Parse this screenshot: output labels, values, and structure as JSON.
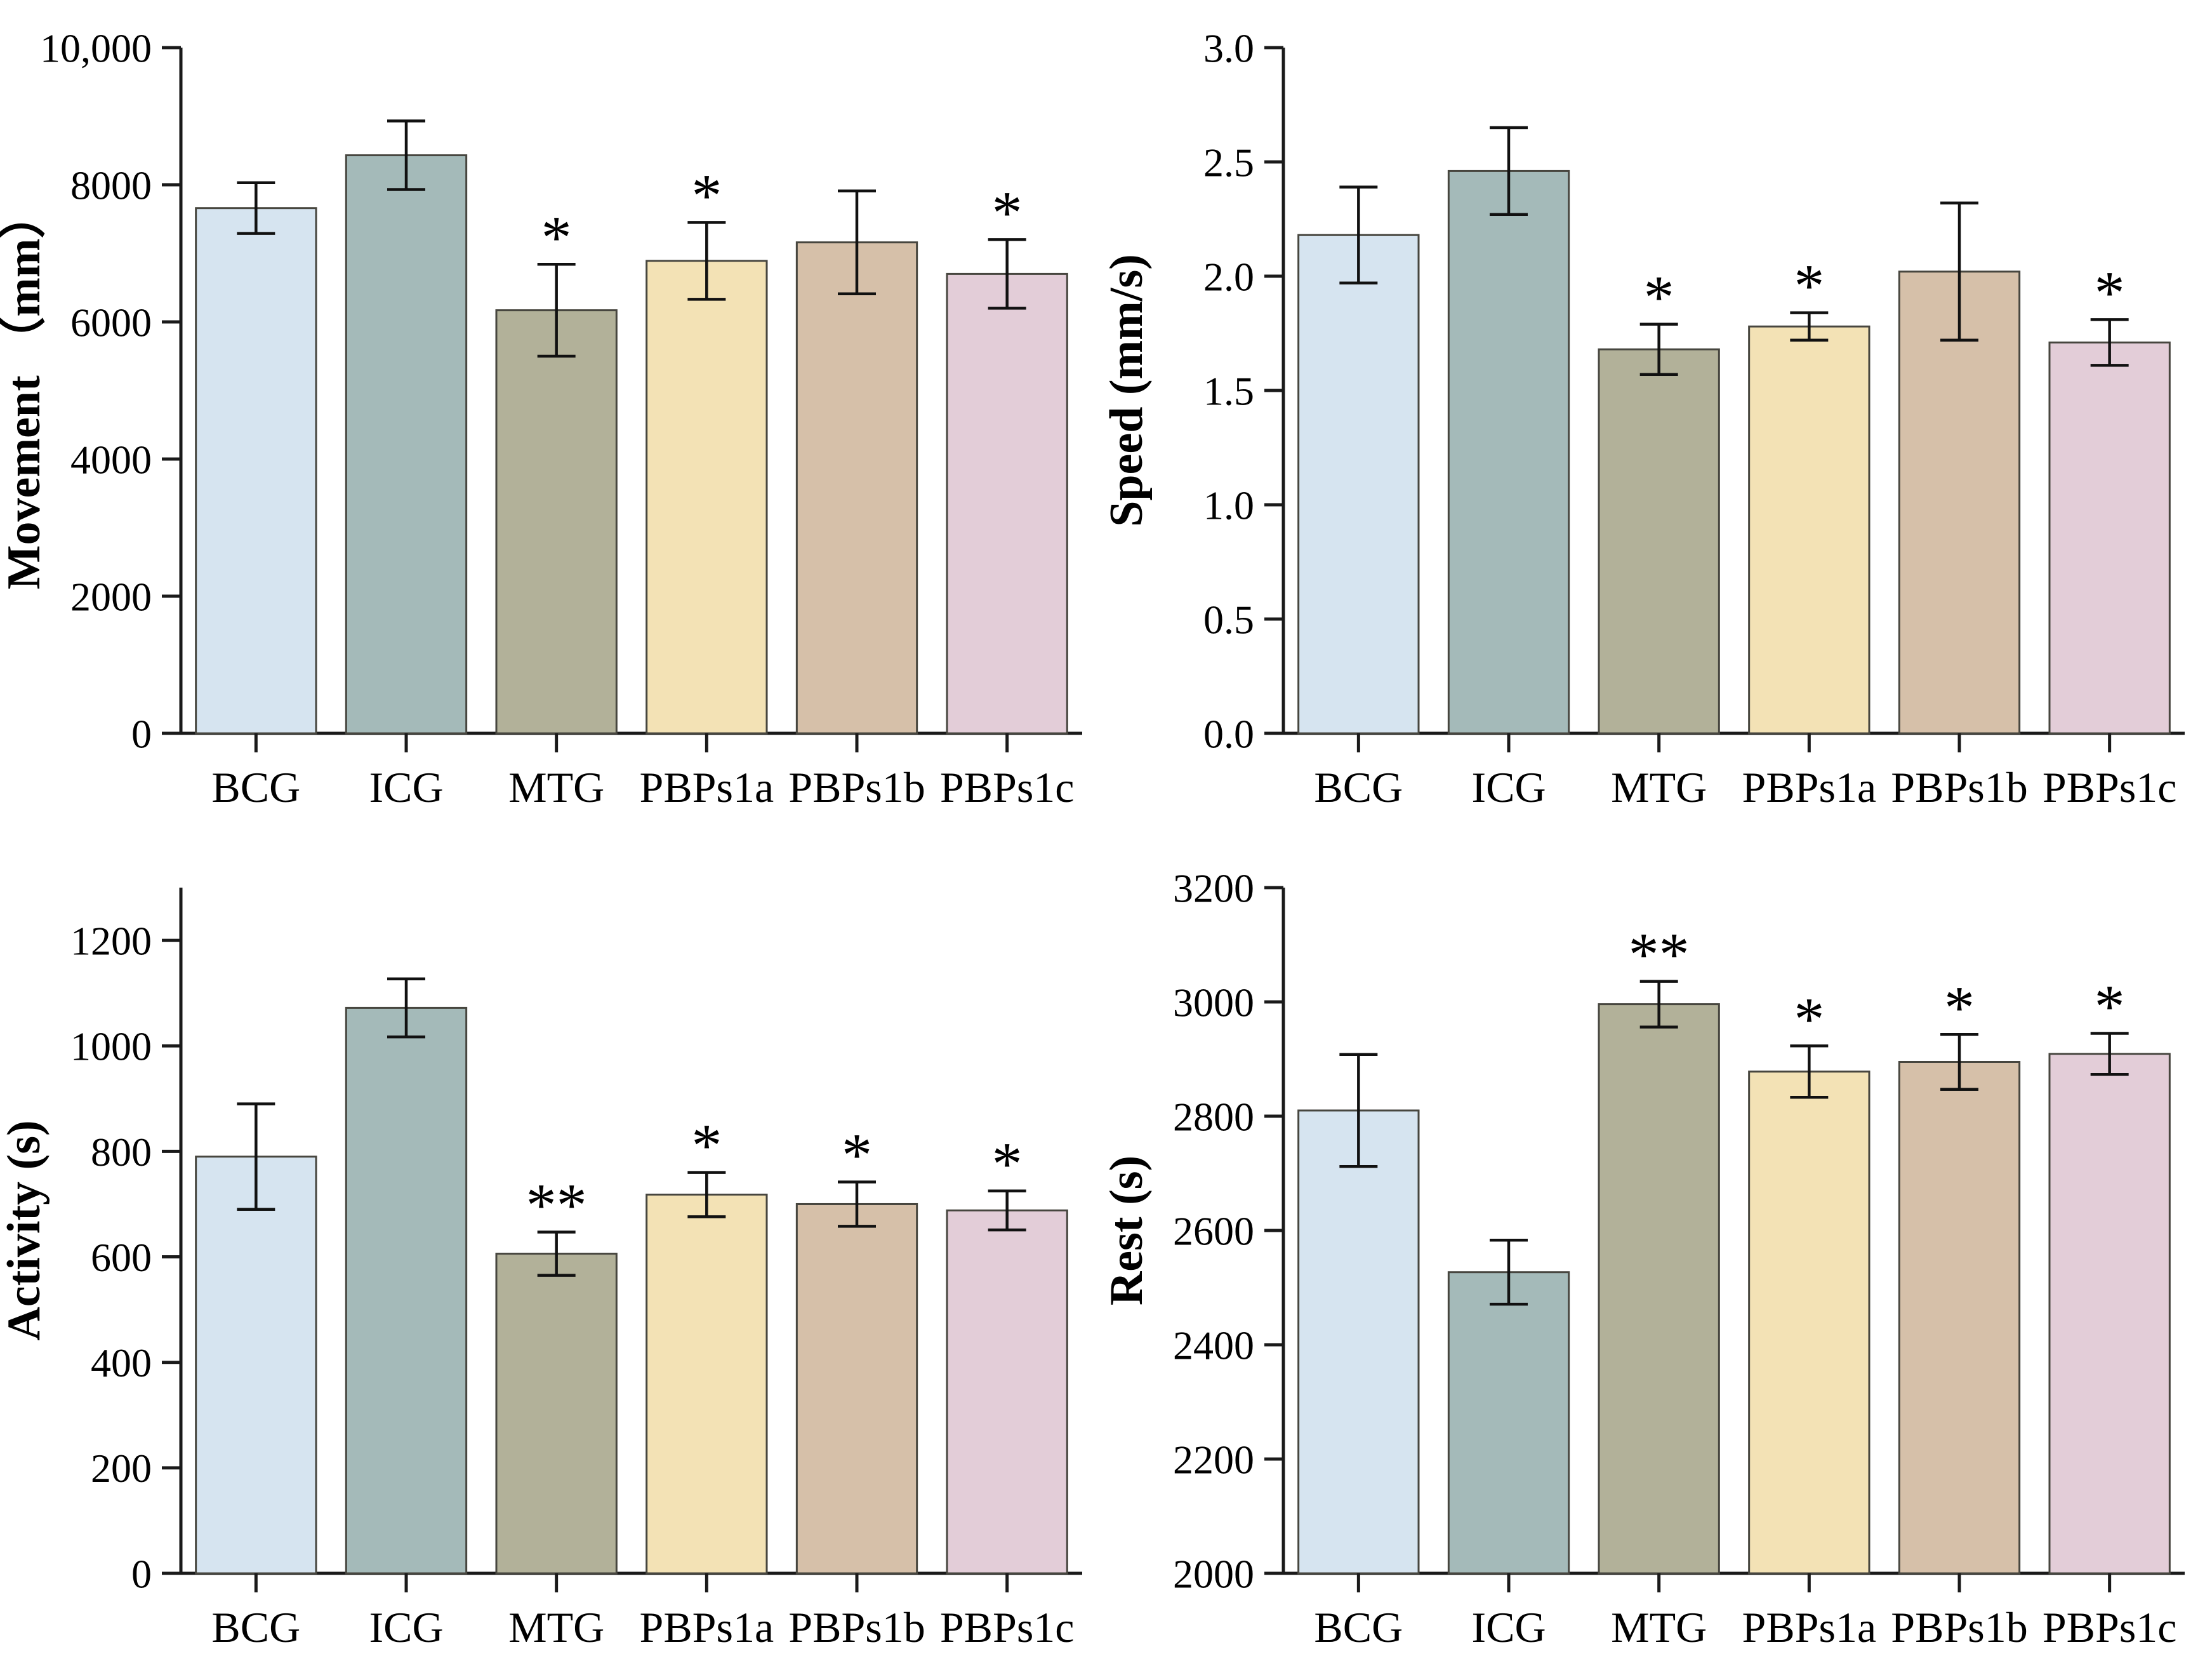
{
  "figure": {
    "background": "#ffffff",
    "axis_color": "#1a1a1a",
    "bar_edge_color": "#47463f",
    "error_bar_color": "#111111",
    "text_color": "#000000",
    "categories": [
      "BCG",
      "ICG",
      "MTG",
      "PBPs1a",
      "PBPs1b",
      "PBPs1c"
    ],
    "bar_colors": [
      "#d6e4f0",
      "#a4bab9",
      "#b2b199",
      "#f3e2b5",
      "#d6c0a9",
      "#e3cdd8"
    ]
  },
  "chart_data": [
    {
      "id": "movement",
      "type": "bar",
      "ylabel": "Movement （mm）",
      "categories": [
        "BCG",
        "ICG",
        "MTG",
        "PBPs1a",
        "PBPs1b",
        "PBPs1c"
      ],
      "values": [
        7660,
        8430,
        6170,
        6890,
        7160,
        6700
      ],
      "errors": [
        370,
        500,
        670,
        560,
        750,
        500
      ],
      "significance": [
        "",
        "",
        "*",
        "*",
        "",
        "*"
      ],
      "ylim": [
        0,
        10000
      ],
      "yticks": [
        0,
        2000,
        4000,
        6000,
        8000,
        10000
      ],
      "ytick_labels": [
        "0",
        "2000",
        "4000",
        "6000",
        "8000",
        "10,000"
      ],
      "grid": false,
      "legend": false
    },
    {
      "id": "speed",
      "type": "bar",
      "ylabel": "Speed (mm/s)",
      "categories": [
        "BCG",
        "ICG",
        "MTG",
        "PBPs1a",
        "PBPs1b",
        "PBPs1c"
      ],
      "values": [
        2.18,
        2.46,
        1.68,
        1.78,
        2.02,
        1.71
      ],
      "errors": [
        0.21,
        0.19,
        0.11,
        0.06,
        0.3,
        0.1
      ],
      "significance": [
        "",
        "",
        "*",
        "*",
        "",
        "*"
      ],
      "ylim": [
        0,
        3.0
      ],
      "yticks": [
        0,
        0.5,
        1.0,
        1.5,
        2.0,
        2.5,
        3.0
      ],
      "ytick_labels": [
        "0.0",
        "0.5",
        "1.0",
        "1.5",
        "2.0",
        "2.5",
        "3.0"
      ],
      "grid": false,
      "legend": false
    },
    {
      "id": "activity",
      "type": "bar",
      "ylabel": "Activity (s)",
      "categories": [
        "BCG",
        "ICG",
        "MTG",
        "PBPs1a",
        "PBPs1b",
        "PBPs1c"
      ],
      "values": [
        790,
        1072,
        606,
        718,
        700,
        688
      ],
      "errors": [
        100,
        55,
        41,
        42,
        42,
        37
      ],
      "significance": [
        "",
        "",
        "**",
        "*",
        "*",
        "*"
      ],
      "ylim": [
        0,
        1300
      ],
      "yticks": [
        0,
        200,
        400,
        600,
        800,
        1000,
        1200
      ],
      "ytick_labels": [
        "0",
        "200",
        "400",
        "600",
        "800",
        "1000",
        "1200"
      ],
      "grid": false,
      "legend": false
    },
    {
      "id": "rest",
      "type": "bar",
      "ylabel": "Rest (s)",
      "categories": [
        "BCG",
        "ICG",
        "MTG",
        "PBPs1a",
        "PBPs1b",
        "PBPs1c"
      ],
      "values": [
        2810,
        2527,
        2996,
        2878,
        2895,
        2909
      ],
      "errors": [
        98,
        56,
        40,
        45,
        48,
        36
      ],
      "significance": [
        "",
        "",
        "**",
        "*",
        "*",
        "*"
      ],
      "ylim": [
        2000,
        3200
      ],
      "yticks": [
        2000,
        2200,
        2400,
        2600,
        2800,
        3000,
        3200
      ],
      "ytick_labels": [
        "2000",
        "2200",
        "2400",
        "2600",
        "2800",
        "3000",
        "3200"
      ],
      "grid": false,
      "legend": false
    }
  ]
}
